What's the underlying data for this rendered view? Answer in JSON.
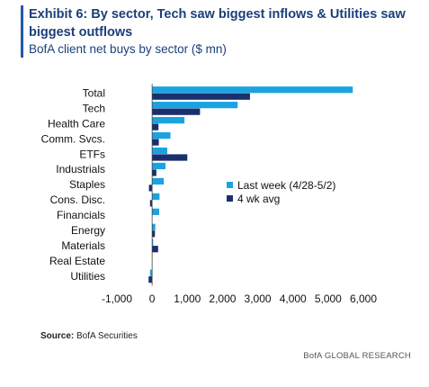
{
  "header": {
    "title": "Exhibit 6: By sector, Tech saw biggest inflows & Utilities saw biggest outflows",
    "subtitle": "BofA client net buys by sector ($ mn)"
  },
  "source": {
    "label": "Source:",
    "text": "BofA Securities"
  },
  "footer": {
    "brand": "BofA GLOBAL RESEARCH"
  },
  "colors": {
    "accent": "#1f5aa8",
    "last_week": "#1aa3e0",
    "four_wk_avg": "#1a2f6e"
  },
  "chart_data": {
    "type": "bar",
    "orientation": "horizontal",
    "categories": [
      "Total",
      "Tech",
      "Health Care",
      "Comm. Svcs.",
      "ETFs",
      "Industrials",
      "Staples",
      "Cons. Disc.",
      "Financials",
      "Energy",
      "Materials",
      "Real Estate",
      "Utilities"
    ],
    "series": [
      {
        "name": "Last week (4/28-5/2)",
        "values": [
          5700,
          2430,
          920,
          520,
          430,
          380,
          330,
          210,
          200,
          90,
          30,
          0,
          -60
        ]
      },
      {
        "name": "4 wk avg",
        "values": [
          2780,
          1360,
          180,
          190,
          1000,
          120,
          -90,
          -60,
          0,
          80,
          170,
          0,
          -100
        ]
      }
    ],
    "xlim": [
      -1000,
      6000
    ],
    "xticks": [
      -1000,
      0,
      1000,
      2000,
      3000,
      4000,
      5000,
      6000
    ],
    "xtick_labels": [
      "-1,000",
      "0",
      "1,000",
      "2,000",
      "3,000",
      "4,000",
      "5,000",
      "6,000"
    ],
    "xlabel": "",
    "ylabel": "",
    "grid": false,
    "legend_position": "right-middle"
  }
}
